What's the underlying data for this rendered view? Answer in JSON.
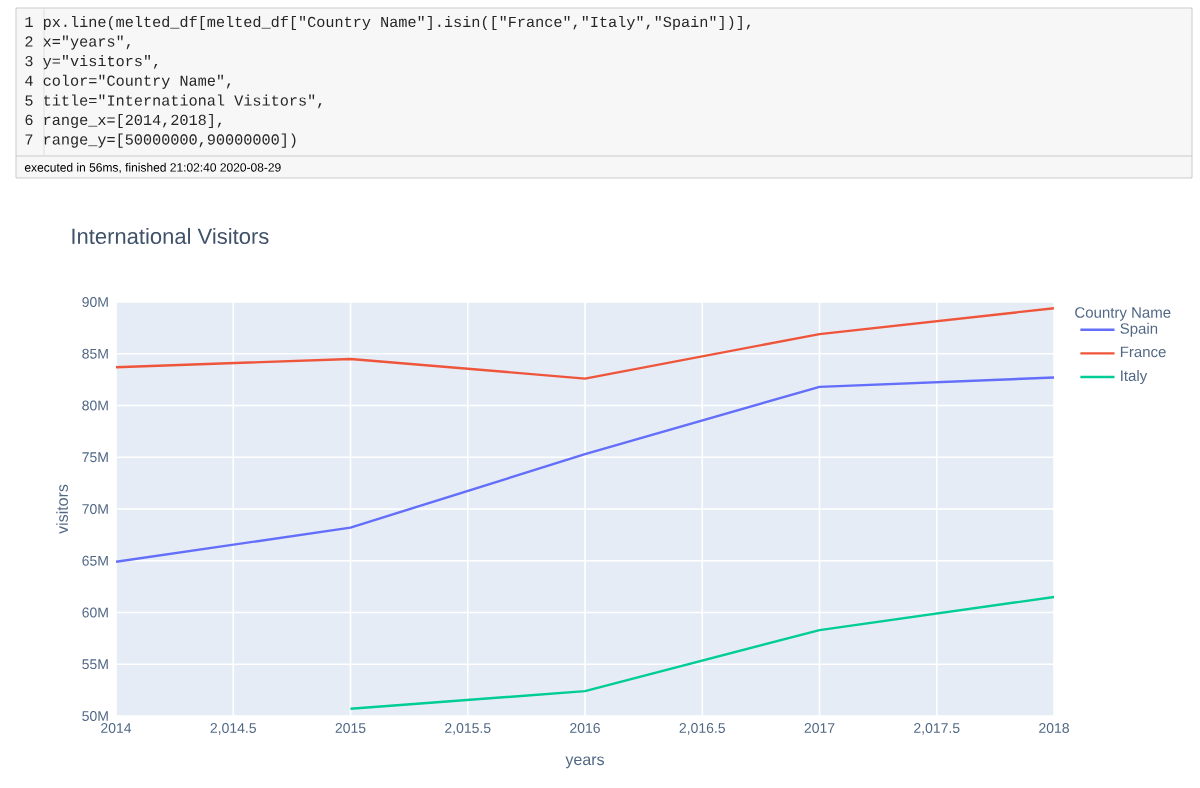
{
  "chart_data": {
    "type": "line",
    "title": "International Visitors",
    "xlabel": "years",
    "ylabel": "visitors",
    "legend_title": "Country Name",
    "x": [
      2014,
      2015,
      2016,
      2017,
      2018
    ],
    "series": [
      {
        "name": "Spain",
        "color": "#636efa",
        "values": [
          64900000,
          68200000,
          75300000,
          81800000,
          82700000
        ]
      },
      {
        "name": "France",
        "color": "#ef553b",
        "values": [
          83700000,
          84500000,
          82600000,
          86900000,
          89400000
        ]
      },
      {
        "name": "Italy",
        "color": "#00cc96",
        "values": [
          null,
          50700000,
          52400000,
          58300000,
          61500000
        ]
      }
    ],
    "xlim": [
      2014,
      2018
    ],
    "xticks": [
      2014,
      {
        "value": 2014.5,
        "label": "2,014.5"
      },
      2015,
      {
        "value": 2015.5,
        "label": "2,015.5"
      },
      2016,
      {
        "value": 2016.5,
        "label": "2,016.5"
      },
      2017,
      {
        "value": 2017.5,
        "label": "2,017.5"
      },
      2018
    ],
    "ylim": [
      50000000,
      90000000
    ],
    "yticks": [
      {
        "value": 50000000,
        "label": "50M"
      },
      {
        "value": 55000000,
        "label": "55M"
      },
      {
        "value": 60000000,
        "label": "60M"
      },
      {
        "value": 65000000,
        "label": "65M"
      },
      {
        "value": 70000000,
        "label": "70M"
      },
      {
        "value": 75000000,
        "label": "75M"
      },
      {
        "value": 80000000,
        "label": "80M"
      },
      {
        "value": 85000000,
        "label": "85M"
      },
      {
        "value": 90000000,
        "label": "90M"
      }
    ],
    "grid": true,
    "legend": "right",
    "marker": "none",
    "line_style": "solid",
    "annotations": [
      "1 px.line(melted_df[melted_df[\"Country Name\"].isin([\"France\",\"Italy\",\"Spain\"])],",
      "2         x=\"years\",",
      "3         y=\"visitors\",",
      "4         color=\"Country Name\",",
      "5         title=\"International Visitors\",",
      "6         range_x=[2014,2018],",
      "7         range_y=[50000000,90000000])",
      "executed in 56ms, finished 21:02:40 2020-08-29"
    ]
  }
}
